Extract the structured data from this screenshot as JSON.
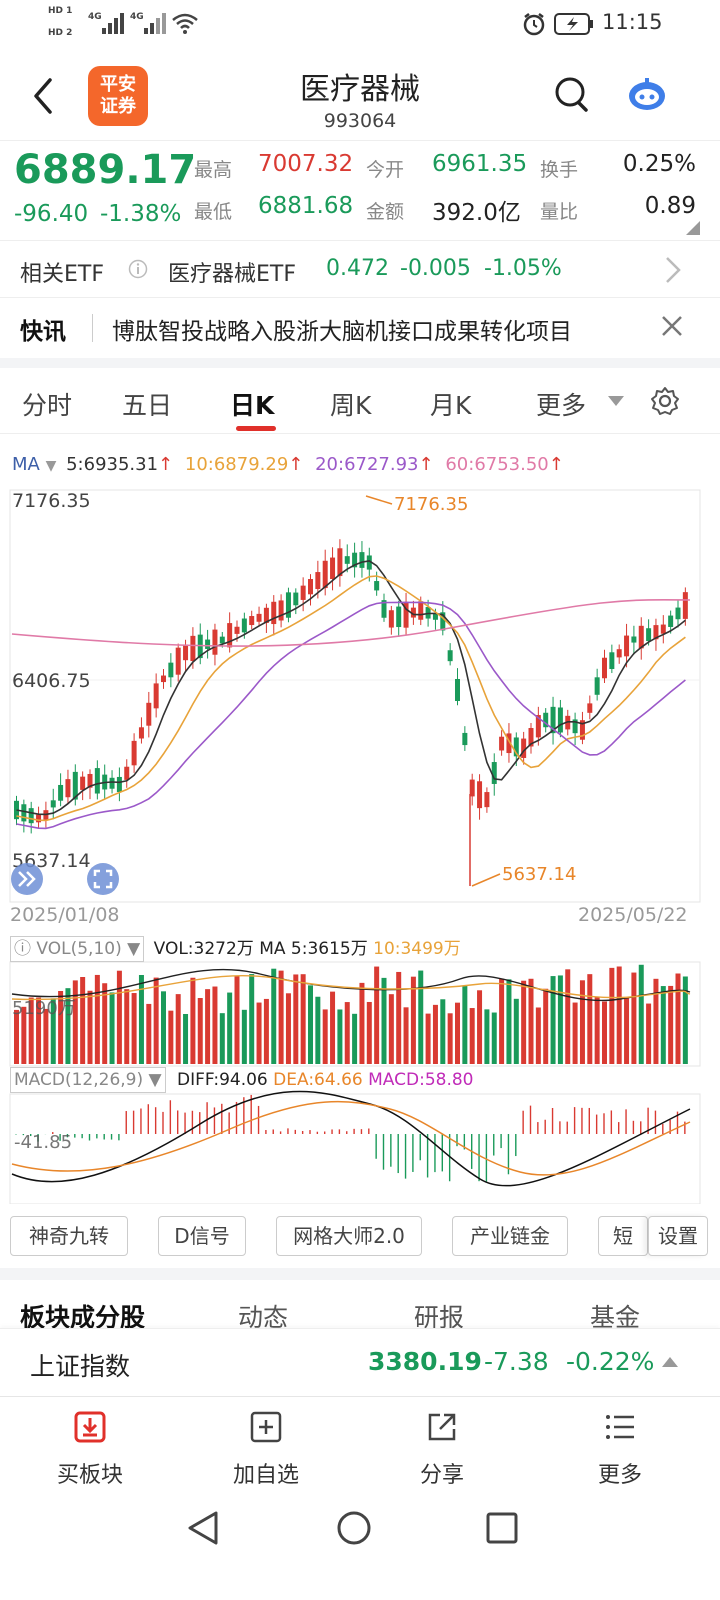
{
  "status": {
    "hd1": "HD 1",
    "hd2": "HD 2",
    "net1": "4G",
    "net2": "4G",
    "time": "11:15"
  },
  "header": {
    "logo_line1": "平安",
    "logo_line2": "证券",
    "title": "医疗器械",
    "code": "993064"
  },
  "quote": {
    "price": "6889.17",
    "change": "-96.40",
    "change_pct": "-1.38%",
    "high_label": "最高",
    "high": "7007.32",
    "low_label": "最低",
    "low": "6881.68",
    "open_label": "今开",
    "open": "6961.35",
    "amount_label": "金额",
    "amount": "392.0亿",
    "turnover_label": "换手",
    "turnover": "0.25%",
    "volratio_label": "量比",
    "volratio": "0.89"
  },
  "etf": {
    "label": "相关ETF",
    "name": "医疗器械ETF",
    "price": "0.472",
    "change": "-0.005",
    "change_pct": "-1.05%"
  },
  "news": {
    "label": "快讯",
    "text": "博肽智投战略入股浙大脑机接口成果转化项目"
  },
  "tabs": [
    "分时",
    "五日",
    "日K",
    "周K",
    "月K",
    "更多"
  ],
  "active_tab": "日K",
  "ma": {
    "label": "MA",
    "ma5": "5:6935.31",
    "ma10": "10:6879.29",
    "ma20": "20:6727.93",
    "ma60": "60:6753.50",
    "color_ma5": "#333333",
    "color_ma10": "#e8a33a",
    "color_ma20": "#9b59c9",
    "color_ma60": "#e07aa7"
  },
  "axis": {
    "y_high": "7176.35",
    "y_mid": "6406.75",
    "y_low": "5637.14",
    "date_start": "2025/01/08",
    "date_end": "2025/05/22",
    "ann_high": "7176.35",
    "ann_low": "5637.14"
  },
  "vol": {
    "selector": "VOL(5,10)",
    "text": "VOL:3272万",
    "ma5": "MA 5:3615万",
    "ma10": "10:3499万",
    "axis_label": "5190万"
  },
  "macd": {
    "selector": "MACD(12,26,9)",
    "diff": "DIFF:94.06",
    "dea": "DEA:64.66",
    "macd": "MACD:58.80",
    "axis_label": "-41.85"
  },
  "tools": [
    "神奇九转",
    "D信号",
    "网格大师2.0",
    "产业链金",
    "短线",
    "设置"
  ],
  "section_tabs": [
    "板块成分股",
    "动态",
    "研报",
    "基金"
  ],
  "index_bar": {
    "name": "上证指数",
    "value": "3380.19",
    "change": "-7.38",
    "change_pct": "-0.22%"
  },
  "actions": [
    "买板块",
    "加自选",
    "分享",
    "更多"
  ],
  "colors": {
    "up": "#d93a32",
    "down": "#1a9a5a",
    "accent": "#e0302a",
    "brand": "#f4672b"
  }
}
